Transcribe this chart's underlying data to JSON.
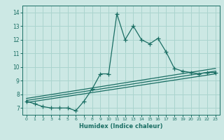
{
  "xlabel": "Humidex (Indice chaleur)",
  "background_color": "#cce8e4",
  "grid_color": "#aad4ce",
  "line_color": "#1a6e64",
  "xlim": [
    -0.5,
    23.5
  ],
  "ylim": [
    6.5,
    14.5
  ],
  "xticks": [
    0,
    1,
    2,
    3,
    4,
    5,
    6,
    7,
    8,
    9,
    10,
    11,
    12,
    13,
    14,
    15,
    16,
    17,
    18,
    19,
    20,
    21,
    22,
    23
  ],
  "yticks": [
    7,
    8,
    9,
    10,
    11,
    12,
    13,
    14
  ],
  "main_data_x": [
    0,
    1,
    2,
    3,
    4,
    5,
    6,
    7,
    8,
    9,
    10,
    11,
    12,
    13,
    14,
    15,
    16,
    17,
    18,
    19,
    20,
    21,
    22,
    23
  ],
  "main_data_y": [
    7.5,
    7.3,
    7.1,
    7.0,
    7.0,
    7.0,
    6.8,
    7.5,
    8.4,
    9.5,
    9.5,
    13.9,
    12.0,
    13.0,
    12.0,
    11.7,
    12.1,
    11.1,
    9.9,
    9.7,
    9.6,
    9.5,
    9.6,
    9.6
  ],
  "reg_line1": [
    [
      0,
      7.4
    ],
    [
      23,
      9.5
    ]
  ],
  "reg_line2": [
    [
      0,
      7.55
    ],
    [
      23,
      9.7
    ]
  ],
  "reg_line3": [
    [
      0,
      7.7
    ],
    [
      23,
      9.9
    ]
  ]
}
